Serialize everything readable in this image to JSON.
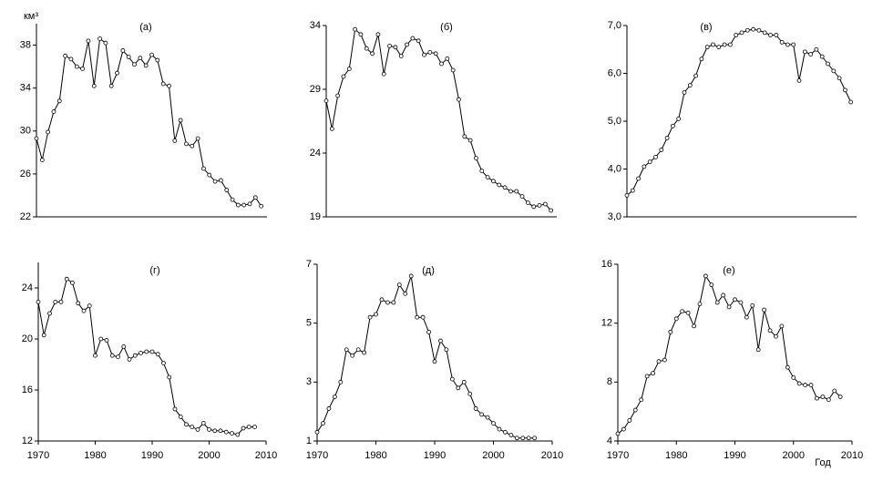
{
  "chart_data": [
    {
      "type": "line",
      "title": "(а)",
      "ylabel": "км³",
      "color": "#000000",
      "x": [
        1970,
        1971,
        1972,
        1973,
        1974,
        1975,
        1976,
        1977,
        1978,
        1979,
        1980,
        1981,
        1982,
        1983,
        1984,
        1985,
        1986,
        1987,
        1988,
        1989,
        1990,
        1991,
        1992,
        1993,
        1994,
        1995,
        1996,
        1997,
        1998,
        1999,
        2000,
        2001,
        2002,
        2003,
        2004,
        2005,
        2006,
        2007,
        2008,
        2009
      ],
      "values": [
        29.3,
        27.3,
        29.9,
        31.8,
        32.8,
        37.0,
        36.7,
        36.0,
        35.8,
        38.4,
        34.2,
        38.6,
        38.2,
        34.2,
        35.4,
        37.5,
        36.9,
        36.2,
        36.8,
        36.1,
        37.1,
        36.6,
        34.4,
        34.2,
        29.1,
        31.0,
        28.8,
        28.6,
        29.3,
        26.5,
        25.9,
        25.3,
        25.4,
        24.5,
        23.6,
        23.1,
        23.1,
        23.2,
        23.8,
        23.0
      ],
      "xlim": [
        1970,
        2010
      ],
      "ylim": [
        22,
        40
      ],
      "yticks": [
        22,
        26,
        30,
        34,
        38
      ]
    },
    {
      "type": "line",
      "title": "(б)",
      "color": "#000000",
      "x": [
        1970,
        1971,
        1972,
        1973,
        1974,
        1975,
        1976,
        1977,
        1978,
        1979,
        1980,
        1981,
        1982,
        1983,
        1984,
        1985,
        1986,
        1987,
        1988,
        1989,
        1990,
        1991,
        1992,
        1993,
        1994,
        1995,
        1996,
        1997,
        1998,
        1999,
        2000,
        2001,
        2002,
        2003,
        2004,
        2005,
        2006,
        2007,
        2008,
        2009
      ],
      "values": [
        28.1,
        25.9,
        28.5,
        30.0,
        30.6,
        33.7,
        33.3,
        32.2,
        31.8,
        33.3,
        30.2,
        32.4,
        32.3,
        31.6,
        32.5,
        33.0,
        32.8,
        31.7,
        31.9,
        31.8,
        31.0,
        31.4,
        30.5,
        28.2,
        25.3,
        25.0,
        23.6,
        22.6,
        22.1,
        21.8,
        21.5,
        21.3,
        21.0,
        21.0,
        20.6,
        20.1,
        19.8,
        19.9,
        20.0,
        19.5
      ],
      "xlim": [
        1970,
        2010
      ],
      "ylim": [
        19,
        34
      ],
      "yticks": [
        19,
        24,
        29,
        34
      ]
    },
    {
      "type": "line",
      "title": "(в)",
      "color": "#000000",
      "x": [
        1970,
        1971,
        1972,
        1973,
        1974,
        1975,
        1976,
        1977,
        1978,
        1979,
        1980,
        1981,
        1982,
        1983,
        1984,
        1985,
        1986,
        1987,
        1988,
        1989,
        1990,
        1991,
        1992,
        1993,
        1994,
        1995,
        1996,
        1997,
        1998,
        1999,
        2000,
        2001,
        2002,
        2003,
        2004,
        2005,
        2006,
        2007,
        2008,
        2009
      ],
      "values": [
        3.45,
        3.55,
        3.8,
        4.05,
        4.15,
        4.25,
        4.4,
        4.65,
        4.9,
        5.05,
        5.6,
        5.75,
        5.95,
        6.3,
        6.55,
        6.6,
        6.55,
        6.6,
        6.6,
        6.8,
        6.85,
        6.9,
        6.92,
        6.9,
        6.85,
        6.8,
        6.8,
        6.65,
        6.6,
        6.6,
        5.85,
        6.45,
        6.4,
        6.5,
        6.35,
        6.2,
        6.05,
        5.9,
        5.65,
        5.4
      ],
      "xlim": [
        1970,
        2010
      ],
      "ylim": [
        3,
        7
      ],
      "yticks": [
        {
          "value": 3,
          "label": "3,0"
        },
        {
          "value": 4,
          "label": "4,0"
        },
        {
          "value": 5,
          "label": "5,0"
        },
        {
          "value": 6,
          "label": "6,0"
        },
        {
          "value": 7,
          "label": "7,0"
        }
      ]
    },
    {
      "type": "line",
      "title": "(г)",
      "color": "#000000",
      "x": [
        1970,
        1971,
        1972,
        1973,
        1974,
        1975,
        1976,
        1977,
        1978,
        1979,
        1980,
        1981,
        1982,
        1983,
        1984,
        1985,
        1986,
        1987,
        1988,
        1989,
        1990,
        1991,
        1992,
        1993,
        1994,
        1995,
        1996,
        1997,
        1998,
        1999,
        2000,
        2001,
        2002,
        2003,
        2004,
        2005,
        2006,
        2007,
        2008
      ],
      "values": [
        22.9,
        20.3,
        22.0,
        22.9,
        22.9,
        24.7,
        24.4,
        22.8,
        22.2,
        22.6,
        18.7,
        20.0,
        19.9,
        18.7,
        18.6,
        19.4,
        18.4,
        18.7,
        18.9,
        19.0,
        19.0,
        18.8,
        18.1,
        17.0,
        14.5,
        13.9,
        13.3,
        13.1,
        12.9,
        13.4,
        12.9,
        12.8,
        12.8,
        12.7,
        12.6,
        12.5,
        13.0,
        13.1,
        13.1
      ],
      "xlim": [
        1970,
        2010
      ],
      "xticks": [
        1970,
        1980,
        1990,
        2000,
        2010
      ],
      "ylim": [
        12,
        26
      ],
      "yticks": [
        12,
        16,
        20,
        24
      ]
    },
    {
      "type": "line",
      "title": "(д)",
      "color": "#000000",
      "x": [
        1970,
        1971,
        1972,
        1973,
        1974,
        1975,
        1976,
        1977,
        1978,
        1979,
        1980,
        1981,
        1982,
        1983,
        1984,
        1985,
        1986,
        1987,
        1988,
        1989,
        1990,
        1991,
        1992,
        1993,
        1994,
        1995,
        1996,
        1997,
        1998,
        1999,
        2000,
        2001,
        2002,
        2003,
        2004,
        2005,
        2006,
        2007
      ],
      "values": [
        1.3,
        1.6,
        2.1,
        2.5,
        3.0,
        4.1,
        3.9,
        4.1,
        4.0,
        5.2,
        5.3,
        5.8,
        5.7,
        5.7,
        6.3,
        6.0,
        6.6,
        5.2,
        5.2,
        4.7,
        3.7,
        4.4,
        4.1,
        3.1,
        2.8,
        3.0,
        2.6,
        2.1,
        1.9,
        1.8,
        1.6,
        1.4,
        1.3,
        1.2,
        1.1,
        1.1,
        1.1,
        1.1
      ],
      "xlim": [
        1970,
        2010
      ],
      "xticks": [
        1970,
        1980,
        1990,
        2000,
        2010
      ],
      "ylim": [
        1,
        7
      ],
      "yticks": [
        1,
        3,
        5,
        7
      ]
    },
    {
      "type": "line",
      "title": "(е)",
      "xlabel": "Год",
      "color": "#000000",
      "x": [
        1970,
        1971,
        1972,
        1973,
        1974,
        1975,
        1976,
        1977,
        1978,
        1979,
        1980,
        1981,
        1982,
        1983,
        1984,
        1985,
        1986,
        1987,
        1988,
        1989,
        1990,
        1991,
        1992,
        1993,
        1994,
        1995,
        1996,
        1997,
        1998,
        1999,
        2000,
        2001,
        2002,
        2003,
        2004,
        2005,
        2006,
        2007,
        2008
      ],
      "values": [
        4.5,
        4.8,
        5.4,
        6.1,
        6.8,
        8.4,
        8.6,
        9.4,
        9.5,
        11.4,
        12.3,
        12.8,
        12.7,
        11.8,
        13.3,
        15.2,
        14.6,
        13.4,
        13.9,
        13.1,
        13.6,
        13.4,
        12.4,
        13.2,
        10.2,
        12.9,
        11.5,
        11.1,
        11.8,
        9.0,
        8.3,
        7.9,
        7.8,
        7.8,
        6.9,
        7.0,
        6.8,
        7.4,
        7.0
      ],
      "xlim": [
        1970,
        2010
      ],
      "xticks": [
        1970,
        1980,
        1990,
        2000,
        2010
      ],
      "ylim": [
        4,
        16
      ],
      "yticks": [
        4,
        8,
        12,
        16
      ]
    }
  ]
}
